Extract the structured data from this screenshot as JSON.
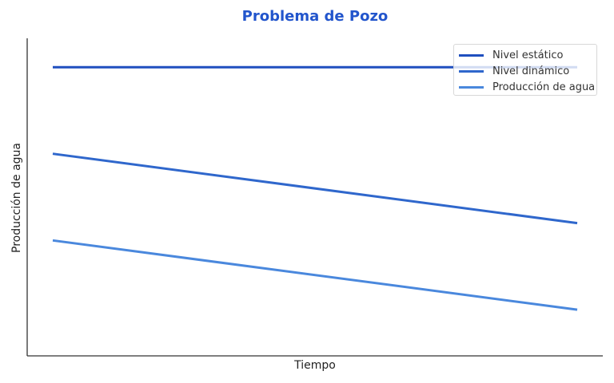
{
  "chart_data": {
    "type": "line",
    "title": "Problema de Pozo",
    "xlabel": "Tiempo",
    "ylabel": "Producción de agua",
    "x": [
      0,
      1
    ],
    "series": [
      {
        "name": "Nivel estático",
        "values": [
          10,
          10
        ],
        "color": "#1f4fbf"
      },
      {
        "name": "Nivel dinámico",
        "values": [
          7,
          4.6
        ],
        "color": "#2f67cc"
      },
      {
        "name": "Producción de agua",
        "values": [
          4,
          1.6
        ],
        "color": "#4a88dd"
      }
    ],
    "xticks": [],
    "yticks": [],
    "grid": false,
    "legend_position": "upper right"
  },
  "labels": {
    "title": "Problema de Pozo",
    "xlabel": "Tiempo",
    "ylabel": "Producción de agua"
  },
  "legend": [
    {
      "label": "Nivel estático",
      "color": "#1f4fbf"
    },
    {
      "label": "Nivel dinámico",
      "color": "#2f67cc"
    },
    {
      "label": "Producción de agua",
      "color": "#4a88dd"
    }
  ]
}
